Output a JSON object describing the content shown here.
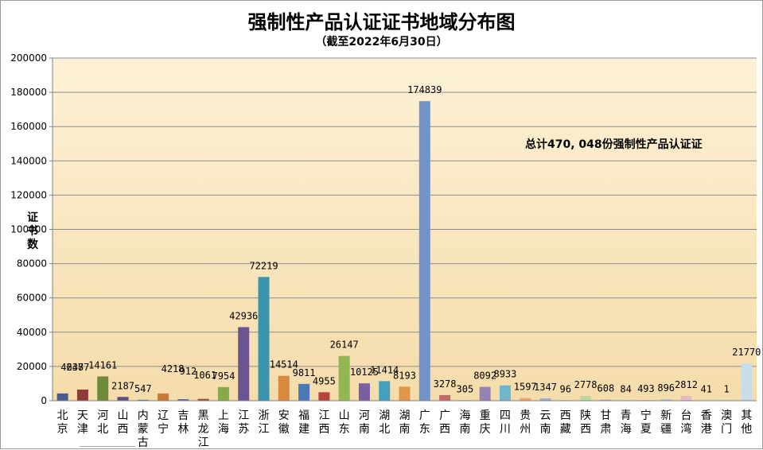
{
  "chart_data": {
    "type": "bar",
    "title": "强制性产品认证证书地域分布图",
    "subtitle": "（截至2022年6月30日）",
    "xlabel": "",
    "ylabel": "证书数",
    "ylim": [
      0,
      200000
    ],
    "yticks": [
      "0",
      "20000",
      "40000",
      "60000",
      "80000",
      "100000",
      "120000",
      "140000",
      "160000",
      "180000",
      "200000"
    ],
    "annotation": "总计470, 048份强制性产品认证证",
    "grid": true,
    "categories": [
      "北京",
      "天津",
      "河北",
      "山西",
      "内蒙古",
      "辽宁",
      "吉林",
      "黑龙江",
      "上海",
      "江苏",
      "浙江",
      "安徽",
      "福建",
      "江西",
      "山东",
      "河南",
      "湖北",
      "湖南",
      "广东",
      "广西",
      "海南",
      "重庆",
      "四川",
      "贵州",
      "云南",
      "西藏",
      "陕西",
      "甘肃",
      "青海",
      "宁夏",
      "新疆",
      "台湾",
      "香港",
      "澳门",
      "其他"
    ],
    "values": [
      4237,
      6487,
      14161,
      2187,
      547,
      4218,
      912,
      1061,
      7954,
      42936,
      72219,
      14514,
      9811,
      4955,
      26147,
      10125,
      11414,
      8193,
      174839,
      3278,
      305,
      8092,
      8933,
      1597,
      1347,
      96,
      2778,
      608,
      84,
      493,
      896,
      2812,
      41,
      1,
      21770
    ],
    "colors": [
      "#4a5d8c",
      "#8e3a38",
      "#6f8a3a",
      "#5b4d7e",
      "#3c8aa0",
      "#c97a35",
      "#5573a8",
      "#a8403d",
      "#86a94a",
      "#6a5590",
      "#3a94ad",
      "#d8883f",
      "#4a78b8",
      "#b84440",
      "#94b652",
      "#7860a0",
      "#44a0bc",
      "#e0964a",
      "#7393c8",
      "#c46a66",
      "#a9c178",
      "#9582b2",
      "#6fb6cc",
      "#f0a766",
      "#9aaed3",
      "#d49a98",
      "#c2d6a0",
      "#b4a6c8",
      "#9ccad8",
      "#f2bf94",
      "#b8c6e0",
      "#e3bcbb",
      "#d6e3c2",
      "#d1c9dc",
      "#c6dee8"
    ]
  }
}
